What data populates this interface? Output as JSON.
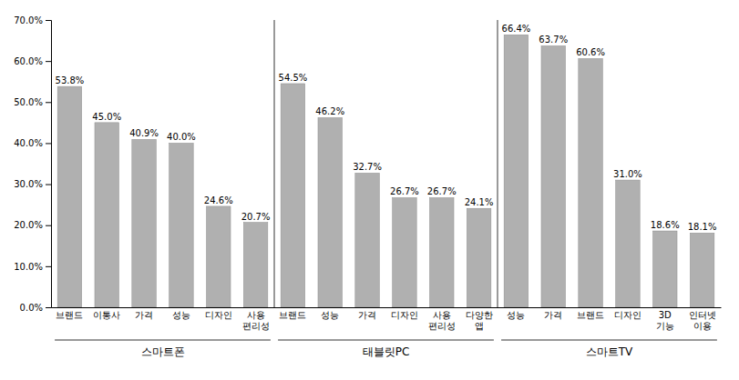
{
  "chart_data": {
    "type": "bar",
    "categories": [
      "브랜드",
      "이통사",
      "가격",
      "성능",
      "디자인",
      "사용\n편리성",
      "브랜드",
      "성능",
      "가격",
      "디자인",
      "사용\n편리성",
      "다양한\n앱",
      "성능",
      "가격",
      "브랜드",
      "디자인",
      "3D\n기능",
      "인터넷\n이용"
    ],
    "values": [
      53.8,
      45.0,
      40.9,
      40.0,
      24.6,
      20.7,
      54.5,
      46.2,
      32.7,
      26.7,
      26.7,
      24.1,
      66.4,
      63.7,
      60.6,
      31.0,
      18.6,
      18.1
    ],
    "value_labels": [
      "53.8%",
      "45.0%",
      "40.9%",
      "40.0%",
      "24.6%",
      "20.7%",
      "54.5%",
      "46.2%",
      "32.7%",
      "26.7%",
      "26.7%",
      "24.1%",
      "66.4%",
      "63.7%",
      "60.6%",
      "31.0%",
      "18.6%",
      "18.1%"
    ],
    "data_labels": true,
    "color": "#b0b0b0",
    "groups": [
      {
        "label": "스마트폰",
        "start": 0,
        "end": 5
      },
      {
        "label": "태블릿PC",
        "start": 6,
        "end": 11
      },
      {
        "label": "스마트TV",
        "start": 12,
        "end": 17
      }
    ],
    "ylim": [
      0,
      70
    ],
    "yticks": [
      {
        "value": 0,
        "label": "0.0%"
      },
      {
        "value": 10,
        "label": "10.0%"
      },
      {
        "value": 20,
        "label": "20.0%"
      },
      {
        "value": 30,
        "label": "30.0%"
      },
      {
        "value": 40,
        "label": "40.0%"
      },
      {
        "value": 50,
        "label": "50.0%"
      },
      {
        "value": 60,
        "label": "60.0%"
      },
      {
        "value": 70,
        "label": "70.0%"
      }
    ],
    "grid": false
  }
}
